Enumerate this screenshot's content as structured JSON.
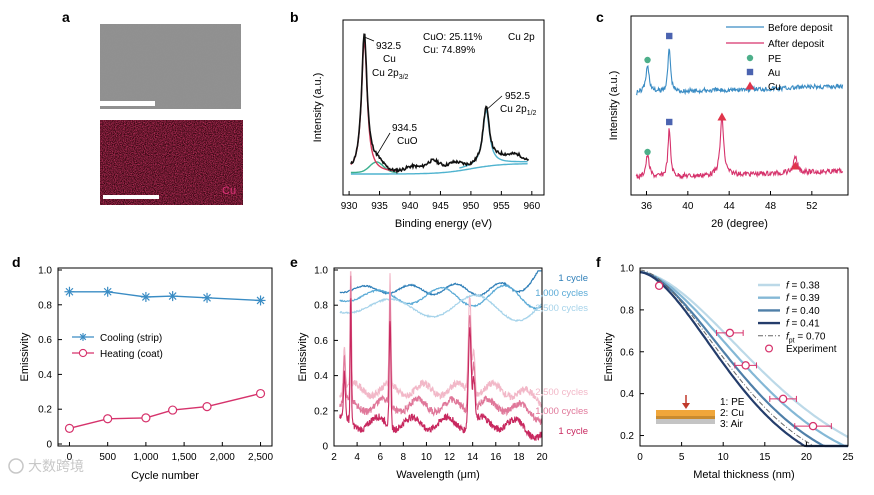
{
  "panels": {
    "a": "a",
    "b": "b",
    "c": "c",
    "d": "d",
    "e": "e",
    "f": "f"
  },
  "colors": {
    "blue": "#3a8cc4",
    "pink": "#d6336c",
    "green": "#4daf8a",
    "au": "#4b63b0",
    "red": "#e0344a",
    "black": "#111111"
  },
  "watermark": "大数跨境",
  "chart_data": [
    {
      "panel": "a",
      "type": "image",
      "element_label": "Cu"
    },
    {
      "panel": "b",
      "type": "line",
      "title": "Cu 2p",
      "xlabel": "Binding energy (eV)",
      "ylabel": "Intensity (a.u.)",
      "xlim": [
        929,
        962
      ],
      "xticks": [
        930,
        935,
        940,
        945,
        950,
        955,
        960
      ],
      "composition": [
        "CuO: 25.11%",
        "Cu: 74.89%"
      ],
      "annotations": [
        {
          "energy": "932.5",
          "lines": [
            "Cu",
            "Cu 2p3/2"
          ]
        },
        {
          "energy": "934.5",
          "lines": [
            "CuO"
          ]
        },
        {
          "energy": "952.5",
          "lines": [
            "Cu 2p1/2"
          ]
        }
      ],
      "peaks": [
        932.5,
        934.5,
        952.5
      ]
    },
    {
      "panel": "c",
      "type": "line",
      "xlabel": "2θ (degree)",
      "ylabel": "Intensity (a.u.)",
      "xlim": [
        34.5,
        55.5
      ],
      "xticks": [
        36,
        40,
        44,
        48,
        52
      ],
      "series": [
        {
          "name": "Before deposit"
        },
        {
          "name": "After deposit"
        }
      ],
      "markers_legend": [
        "PE",
        "Au",
        "Cu"
      ],
      "before_peaks": [
        {
          "x": 36.1,
          "phase": "PE"
        },
        {
          "x": 38.2,
          "phase": "Au"
        }
      ],
      "after_peaks": [
        {
          "x": 36.1,
          "phase": "PE"
        },
        {
          "x": 38.2,
          "phase": "Au"
        },
        {
          "x": 43.3,
          "phase": "Cu"
        },
        {
          "x": 50.4,
          "phase": "Cu"
        }
      ]
    },
    {
      "panel": "d",
      "type": "line",
      "xlabel": "Cycle number",
      "ylabel": "Emissivity",
      "xlim": [
        -150,
        2650
      ],
      "ylim": [
        0,
        1.0
      ],
      "xticks": [
        0,
        500,
        1000,
        1500,
        2000,
        2500
      ],
      "xticklabels": [
        "0",
        "500",
        "1,000",
        "1,500",
        "2,000",
        "2,500"
      ],
      "yticks": [
        0,
        0.2,
        0.4,
        0.6,
        0.8,
        1.0
      ],
      "yticklabels": [
        "0",
        "0.2",
        "0.4",
        "0.6",
        "0.8",
        "1.0"
      ],
      "x": [
        0,
        500,
        1000,
        1350,
        1800,
        2500
      ],
      "series": [
        {
          "name": "Cooling (strip)",
          "values": [
            0.875,
            0.875,
            0.845,
            0.85,
            0.84,
            0.825
          ]
        },
        {
          "name": "Heating (coat)",
          "values": [
            0.09,
            0.145,
            0.15,
            0.195,
            0.215,
            0.29
          ]
        }
      ]
    },
    {
      "panel": "e",
      "type": "line",
      "xlabel": "Wavelength (μm)",
      "ylabel": "Emissivity",
      "xlim": [
        2,
        20
      ],
      "ylim": [
        0,
        1.0
      ],
      "xticks": [
        2,
        4,
        6,
        8,
        10,
        12,
        14,
        16,
        18,
        20
      ],
      "yticks": [
        0,
        0.2,
        0.4,
        0.6,
        0.8,
        1.0
      ],
      "yticklabels": [
        "0",
        "0.2",
        "0.4",
        "0.6",
        "0.8",
        "1.0"
      ],
      "series_labels": [
        {
          "group": "cooling",
          "label": "1 cycle",
          "level": 0.89
        },
        {
          "group": "cooling",
          "label": "1,000 cycles",
          "level": 0.85
        },
        {
          "group": "cooling",
          "label": "2,500 cycles",
          "level": 0.79
        },
        {
          "group": "heating",
          "label": "2,500 cycles",
          "level": 0.32
        },
        {
          "group": "heating",
          "label": "1,000 cycles",
          "level": 0.23
        },
        {
          "group": "heating",
          "label": "1 cycle",
          "level": 0.13
        }
      ]
    },
    {
      "panel": "f",
      "type": "line",
      "xlabel": "Metal thickness (nm)",
      "ylabel": "Emissivity",
      "xlim": [
        0,
        25
      ],
      "ylim": [
        0.15,
        1.0
      ],
      "xticks": [
        0,
        5,
        10,
        15,
        20,
        25
      ],
      "yticks": [
        0.2,
        0.4,
        0.6,
        0.8,
        1.0
      ],
      "yticklabels": [
        "0.2",
        "0.4",
        "0.6",
        "0.8",
        "1.0"
      ],
      "legend": [
        "f = 0.38",
        "f = 0.39",
        "f = 0.40",
        "f = 0.41",
        "fpt = 0.70",
        "Experiment"
      ],
      "layers": [
        "1: PE",
        "2: Cu",
        "3: Air"
      ],
      "series": [
        {
          "name": "f = 0.38",
          "f": 0.38
        },
        {
          "name": "f = 0.39",
          "f": 0.39
        },
        {
          "name": "f = 0.40",
          "f": 0.4
        },
        {
          "name": "f = 0.41",
          "f": 0.41
        },
        {
          "name": "fpt = 0.70",
          "f": 0.7
        }
      ],
      "experiment": [
        {
          "x": 2.3,
          "y": 0.915,
          "xerr": 0
        },
        {
          "x": 10.8,
          "y": 0.69,
          "xerr": 1.6
        },
        {
          "x": 12.7,
          "y": 0.535,
          "xerr": 1.3
        },
        {
          "x": 17.2,
          "y": 0.375,
          "xerr": 1.6
        },
        {
          "x": 20.8,
          "y": 0.245,
          "xerr": 2.2
        }
      ]
    }
  ]
}
